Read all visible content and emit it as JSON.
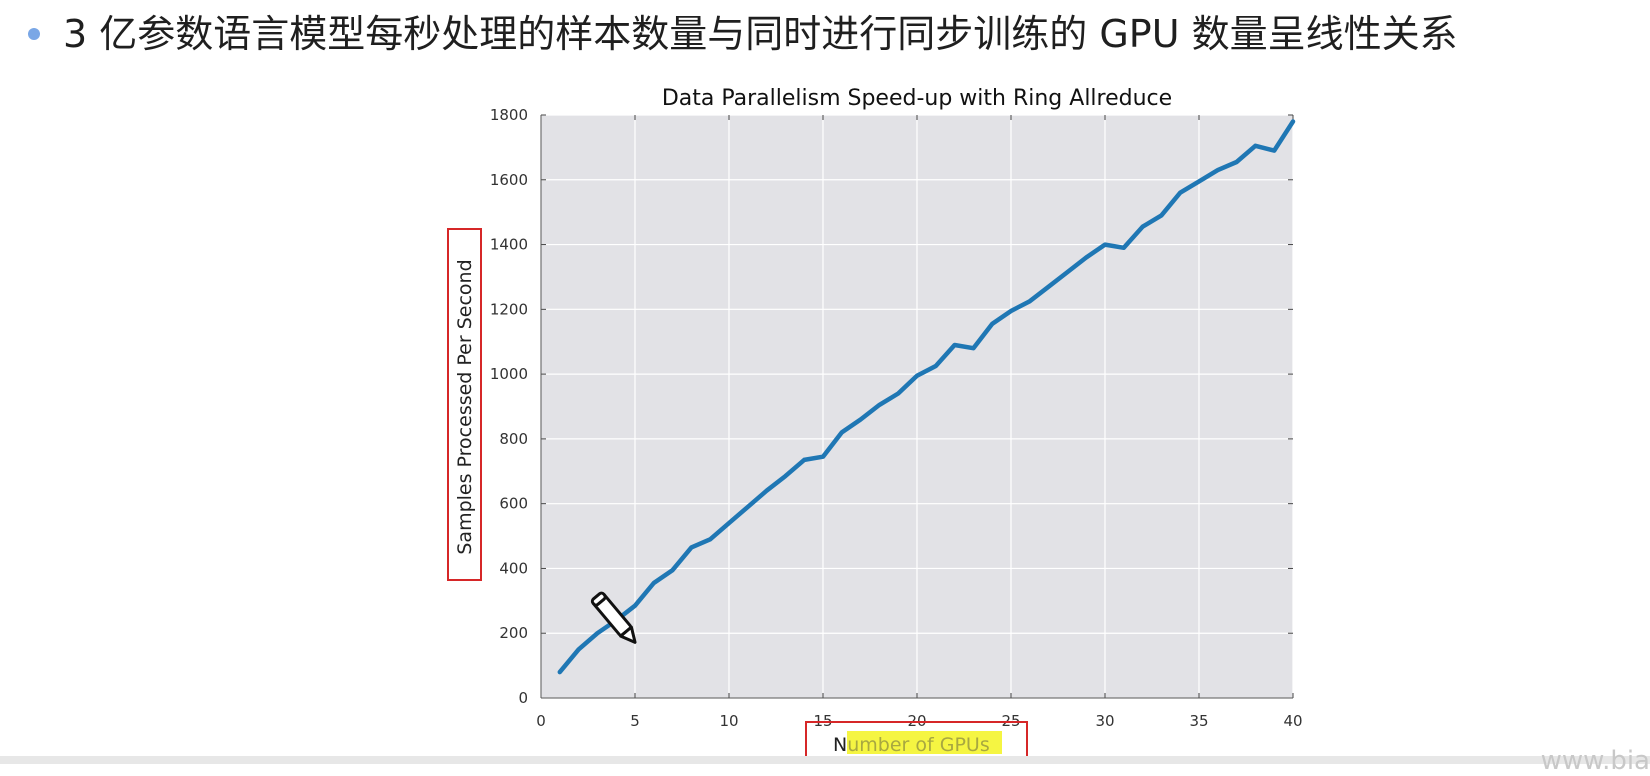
{
  "slide": {
    "headline": "3 亿参数语言模型每秒处理的样本数量与同时进行同步训练的 GPU 数量呈线性关系",
    "watermark": "www.bia"
  },
  "colors": {
    "line": "#1f77b4",
    "plot_bg": "#e2e2e6",
    "grid": "#ffffff",
    "highlight_box": "#d62728",
    "text_highlight": "#f5f542",
    "bullet": "#7aa7e6"
  },
  "icons": [
    "pen-icon"
  ],
  "chart_data": {
    "type": "line",
    "title": "Data Parallelism Speed-up with Ring Allreduce",
    "xlabel": "Number of GPUs",
    "xlabel_plain": "N",
    "xlabel_highlighted": "umber of GPU",
    "xlabel_suffix": "s",
    "ylabel": "Samples Processed Per Second",
    "xlim": [
      0,
      40
    ],
    "ylim": [
      0,
      1800
    ],
    "xticks": [
      0,
      5,
      10,
      15,
      20,
      25,
      30,
      35,
      40
    ],
    "yticks": [
      0,
      200,
      400,
      600,
      800,
      1000,
      1200,
      1400,
      1600,
      1800
    ],
    "grid": true,
    "series": [
      {
        "x": [
          1,
          2,
          3,
          4,
          5,
          6,
          7,
          8,
          9,
          10,
          11,
          12,
          13,
          14,
          15,
          16,
          17,
          18,
          19,
          20,
          21,
          22,
          23,
          24,
          25,
          26,
          27,
          28,
          29,
          30,
          31,
          32,
          33,
          34,
          35,
          36,
          37,
          38,
          39,
          40
        ],
        "values": [
          80,
          150,
          200,
          240,
          285,
          355,
          395,
          465,
          490,
          540,
          590,
          640,
          685,
          735,
          745,
          820,
          860,
          905,
          940,
          995,
          1025,
          1090,
          1080,
          1155,
          1195,
          1225,
          1270,
          1315,
          1360,
          1400,
          1390,
          1455,
          1490,
          1560,
          1595,
          1630,
          1655,
          1705,
          1690,
          1780
        ]
      }
    ]
  }
}
